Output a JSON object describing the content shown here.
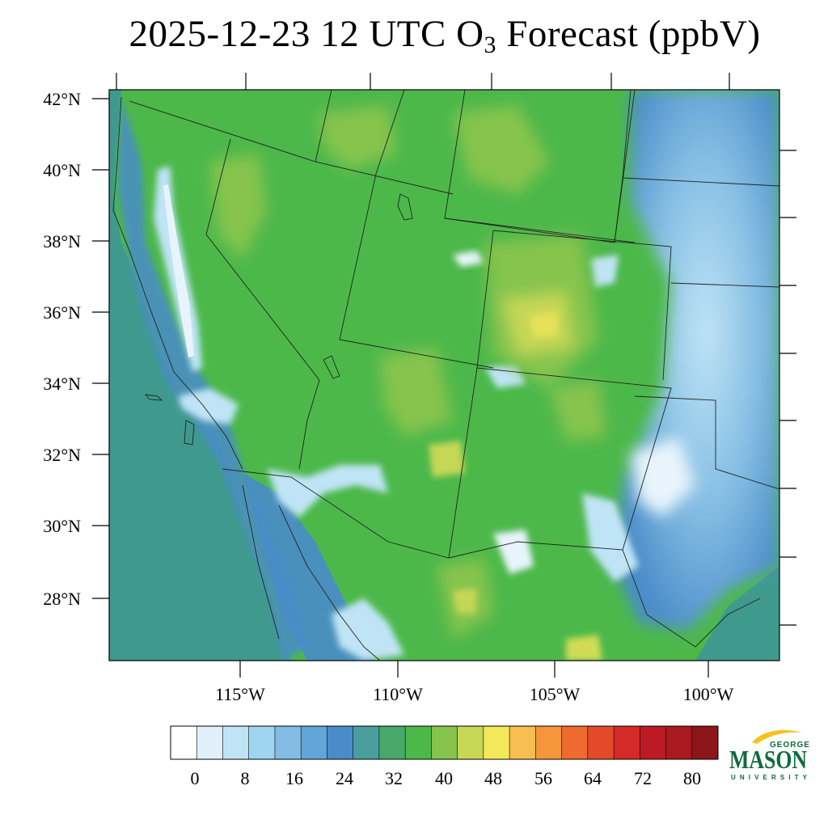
{
  "title": {
    "prefix": "2025-12-23 12 UTC O",
    "subscript": "3",
    "suffix": " Forecast (ppbV)"
  },
  "map": {
    "lat_labels": [
      "42°N",
      "40°N",
      "38°N",
      "36°N",
      "34°N",
      "32°N",
      "30°N",
      "28°N"
    ],
    "lon_labels": [
      "115°W",
      "110°W",
      "105°W",
      "100°W"
    ],
    "colors": {
      "ocean": "#3f9a8d",
      "coast_blue": "#4a8dc8",
      "land_green": "#4cb84a",
      "light_green": "#86c44e",
      "yellow_green": "#c6d756",
      "yellow": "#f2e65a",
      "valley_light": "#a6d8f2",
      "valley_white": "#e8f4fb",
      "border": "#222222"
    }
  },
  "colorbar": {
    "colors": [
      "#ffffff",
      "#dff0fa",
      "#bfe4f6",
      "#9fd5f1",
      "#84bde3",
      "#63a5d9",
      "#4a8cc9",
      "#4a9e9e",
      "#48a86a",
      "#4cb84a",
      "#86c44e",
      "#c6d756",
      "#f5e75a",
      "#f8be52",
      "#f5963c",
      "#ee6a2e",
      "#e44a2a",
      "#d42a28",
      "#bc1a24",
      "#a81a20",
      "#8c161a"
    ],
    "labels": [
      "0",
      "8",
      "16",
      "24",
      "32",
      "40",
      "48",
      "56",
      "64",
      "72",
      "80"
    ]
  },
  "logo": {
    "line1": "GEORGE",
    "line2": "MASON",
    "line3": "UNIVERSITY",
    "green": "#0e6b3c",
    "gold": "#f4c21a"
  }
}
